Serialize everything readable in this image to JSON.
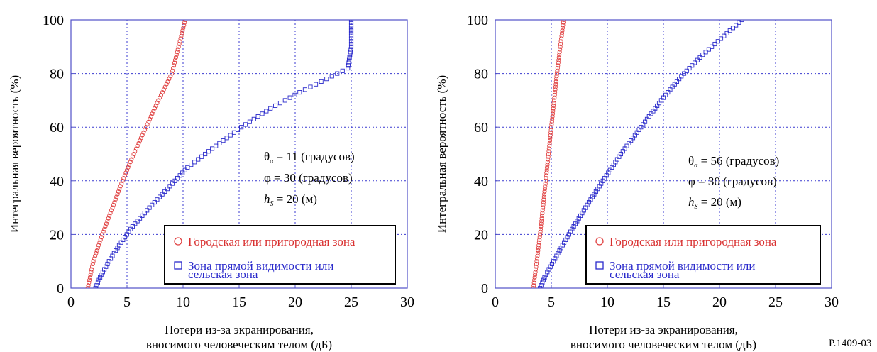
{
  "figure_id": "P.1409-03",
  "colors": {
    "urban": "#e04040",
    "los": "#2a2acb",
    "grid": "#3a3ad0",
    "frame": "#5050c8"
  },
  "chart_data": [
    {
      "type": "scatter",
      "xlabel_lines": [
        "Потери из-за экранирования,",
        "вносимого человеческим телом (дБ)"
      ],
      "ylabel": "Интегральная вероятность (%)",
      "xlim": [
        0,
        30
      ],
      "ylim": [
        0,
        100
      ],
      "xticks": [
        "0",
        "5",
        "10",
        "15",
        "20",
        "25",
        "30"
      ],
      "yticks": [
        "0",
        "20",
        "40",
        "60",
        "80",
        "100"
      ],
      "grid": true,
      "legend_position": "bottom-right",
      "annotation": {
        "theta": "11 (градусов)",
        "phi": "30 (градусов)",
        "h": "20 (м)"
      },
      "series": [
        {
          "name": "Городская или пригородная зона",
          "marker": "circle",
          "color": "#e04040",
          "x": [
            1.5,
            2.0,
            2.8,
            3.7,
            4.6,
            5.6,
            6.7,
            7.8,
            9.0,
            10.2
          ],
          "y": [
            0,
            10,
            20,
            30,
            40,
            50,
            60,
            70,
            80,
            100
          ]
        },
        {
          "name_lines": [
            "Зона прямой видимости или",
            "сельская зона"
          ],
          "marker": "square",
          "color": "#2a2acb",
          "x": [
            2.2,
            2.7,
            3.4,
            4.3,
            5.5,
            7.0,
            8.6,
            10.4,
            12.6,
            15.2,
            17.8,
            20.4,
            22.8,
            24.7,
            25.0,
            25.0
          ],
          "y": [
            0,
            5,
            10,
            16,
            23,
            30,
            37,
            45,
            52,
            60,
            67,
            73,
            78,
            82,
            90,
            100
          ]
        }
      ]
    },
    {
      "type": "scatter",
      "xlabel_lines": [
        "Потери из-за экранирования,",
        "вносимого человеческим телом (дБ)"
      ],
      "ylabel": "Интегральная вероятность (%)",
      "xlim": [
        0,
        30
      ],
      "ylim": [
        0,
        100
      ],
      "xticks": [
        "0",
        "5",
        "10",
        "15",
        "20",
        "25",
        "30"
      ],
      "yticks": [
        "0",
        "20",
        "40",
        "60",
        "80",
        "100"
      ],
      "grid": true,
      "legend_position": "bottom-right",
      "annotation": {
        "theta": "56 (градусов)",
        "phi": "30 (градусов)",
        "h": "20 (м)"
      },
      "series": [
        {
          "name": "Городская или пригородная зона",
          "marker": "circle",
          "color": "#e04040",
          "x": [
            3.4,
            3.7,
            4.0,
            4.3,
            4.6,
            4.9,
            5.2,
            5.5,
            5.8,
            6.1
          ],
          "y": [
            0,
            10,
            20,
            32,
            44,
            56,
            68,
            80,
            90,
            100
          ]
        },
        {
          "name_lines": [
            "Зона прямой видимости или",
            "сельская зона"
          ],
          "marker": "square",
          "color": "#2a2acb",
          "x": [
            4.0,
            4.5,
            5.2,
            6.0,
            7.0,
            8.2,
            9.6,
            11.2,
            13.0,
            14.8,
            16.6,
            18.5,
            20.4,
            22.0
          ],
          "y": [
            0,
            5,
            10,
            16,
            23,
            31,
            40,
            50,
            60,
            70,
            79,
            87,
            94,
            100
          ]
        }
      ]
    }
  ]
}
